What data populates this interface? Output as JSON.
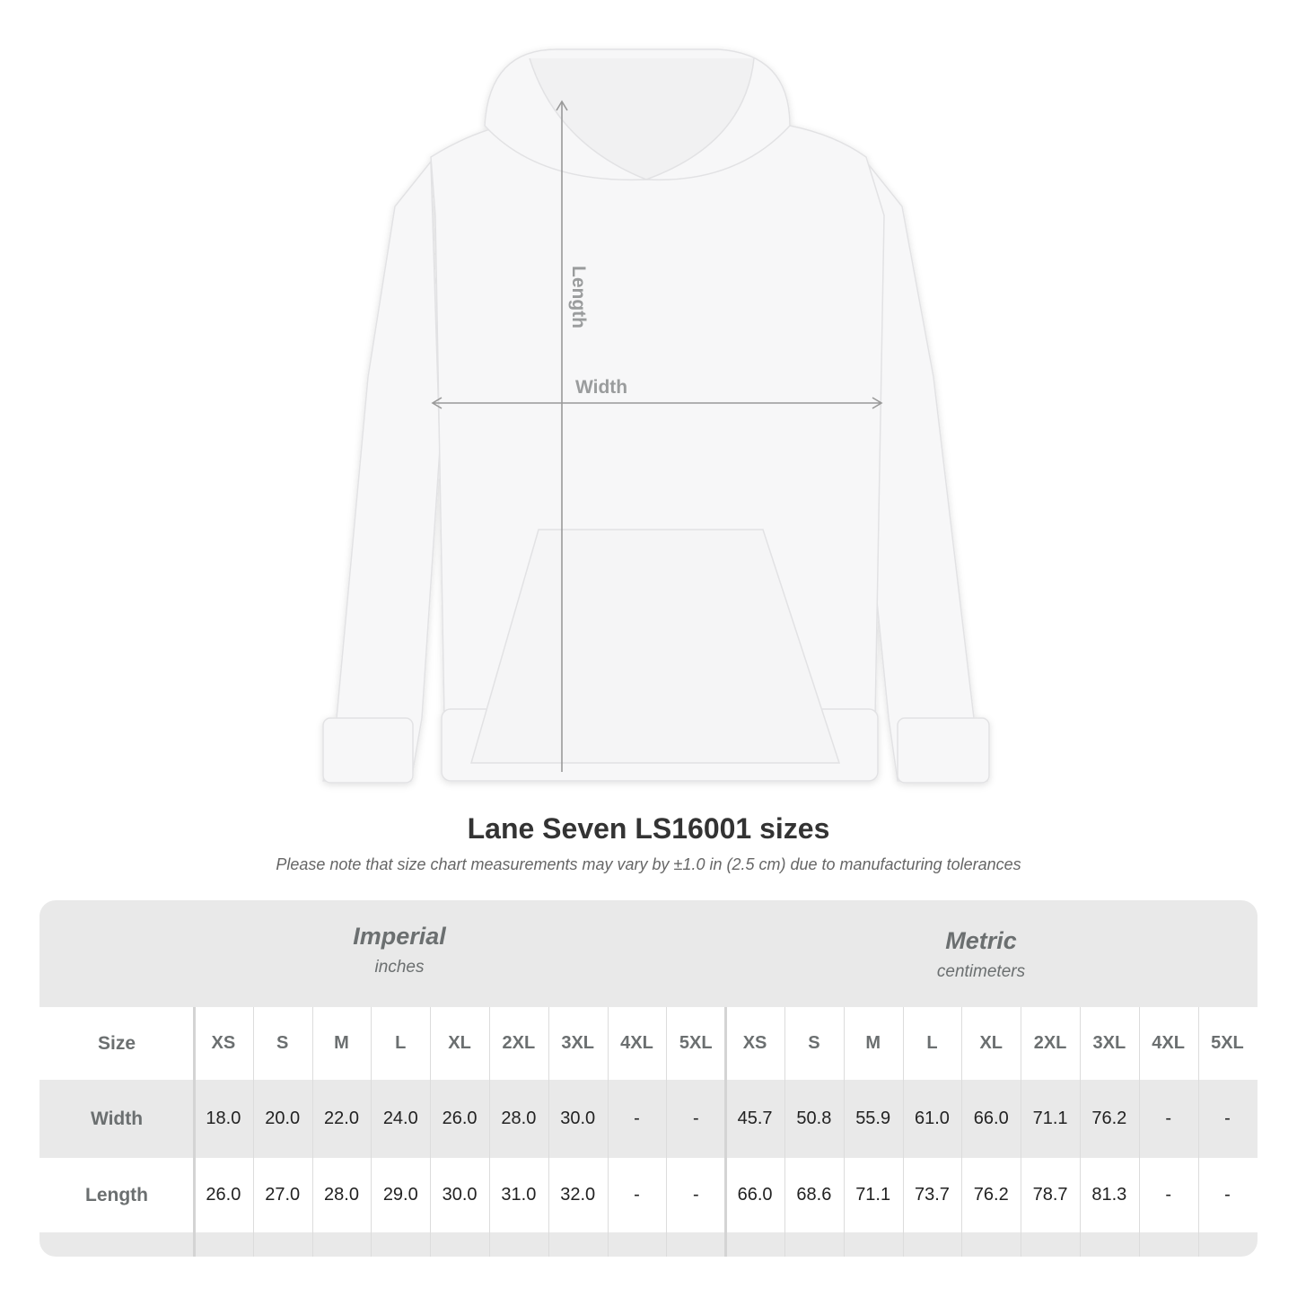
{
  "diagram": {
    "length_label": "Length",
    "width_label": "Width"
  },
  "title": "Lane Seven LS16001 sizes",
  "note": "Please note that size chart measurements may vary by ±1.0 in (2.5 cm) due to manufacturing tolerances",
  "table": {
    "imperial": {
      "name": "Imperial",
      "unit": "inches"
    },
    "metric": {
      "name": "Metric",
      "unit": "centimeters"
    },
    "size_label": "Size",
    "sizes": [
      "XS",
      "S",
      "M",
      "L",
      "XL",
      "2XL",
      "3XL",
      "4XL",
      "5XL"
    ],
    "rows": [
      {
        "label": "Width",
        "imperial": [
          "18.0",
          "20.0",
          "22.0",
          "24.0",
          "26.0",
          "28.0",
          "30.0",
          "-",
          "-"
        ],
        "metric": [
          "45.7",
          "50.8",
          "55.9",
          "61.0",
          "66.0",
          "71.1",
          "76.2",
          "-",
          "-"
        ]
      },
      {
        "label": "Length",
        "imperial": [
          "26.0",
          "27.0",
          "28.0",
          "29.0",
          "30.0",
          "31.0",
          "32.0",
          "-",
          "-"
        ],
        "metric": [
          "66.0",
          "68.6",
          "71.1",
          "73.7",
          "76.2",
          "78.7",
          "81.3",
          "-",
          "-"
        ]
      }
    ]
  }
}
